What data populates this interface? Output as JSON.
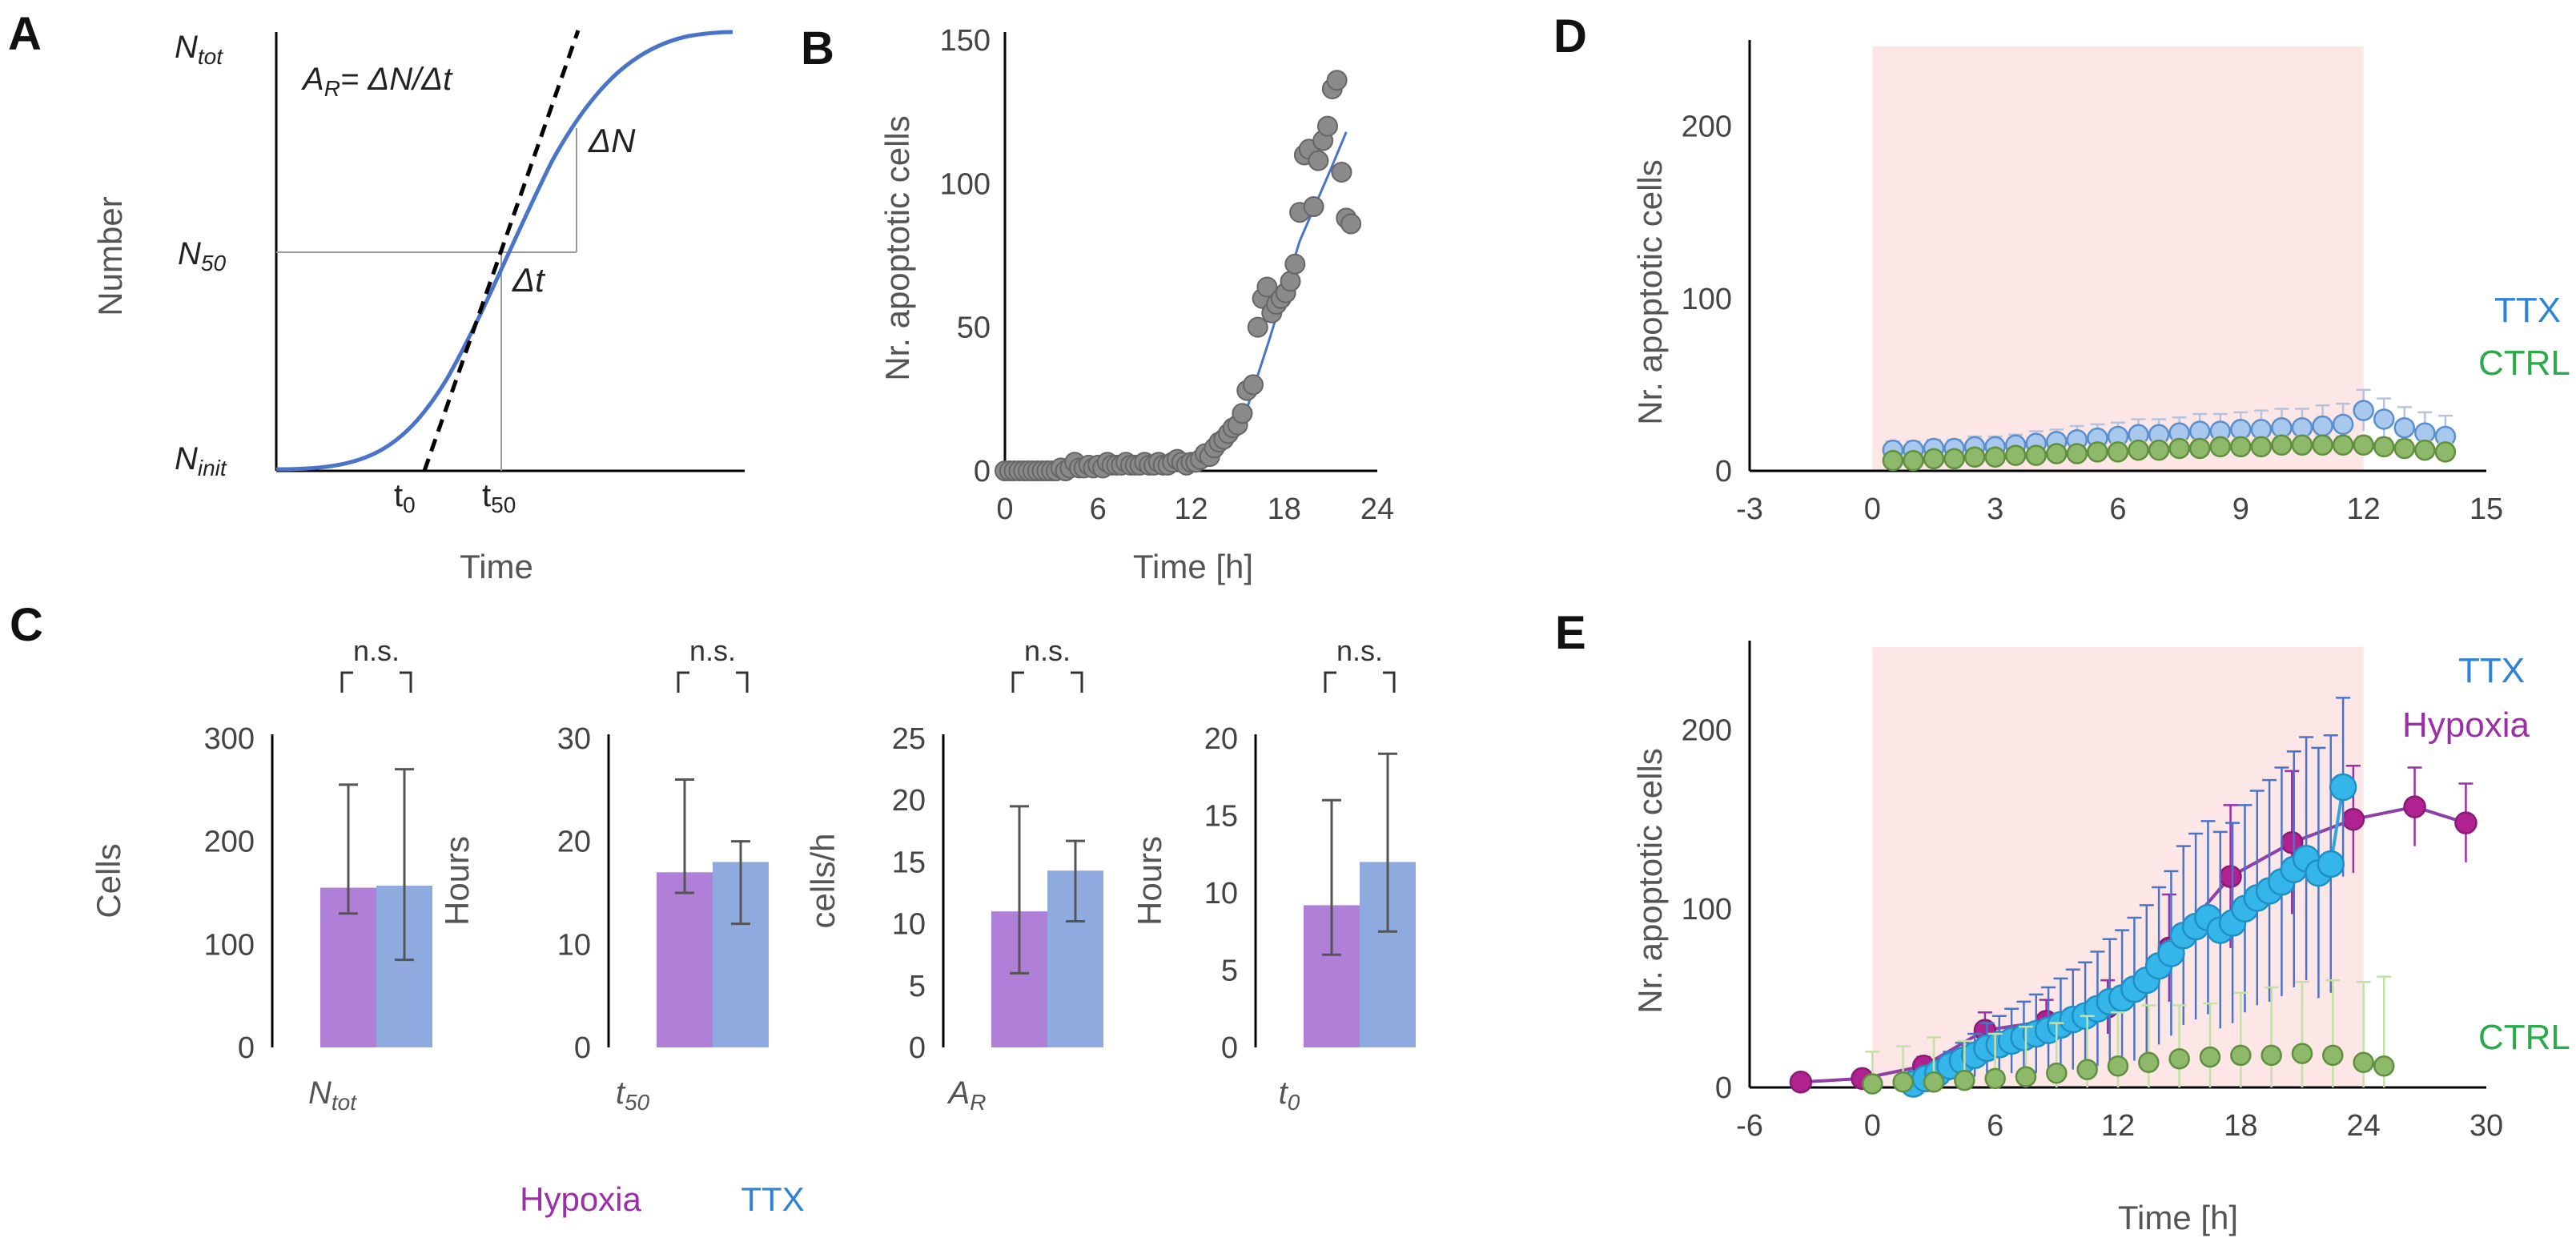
{
  "colors": {
    "hypoxia": "#b07fd8",
    "ttx": "#8eaadf",
    "ttx_dark": "#2f83d6",
    "hypoxia_dark": "#9b2fa8",
    "ctrl": "#2aaa4a",
    "ctrl_fill": "#8fb96a",
    "shade": "#fde6e6",
    "sigmoid": "#4a74c9",
    "gray_point": "#8a8a8a"
  },
  "chart_data": [
    {
      "panel": "A",
      "type": "line",
      "title": "",
      "xlabel": "Time",
      "ylabel": "Number",
      "y_levels": [
        "N_tot",
        "N_50",
        "N_init"
      ],
      "x_marks": [
        "t0",
        "t50"
      ],
      "annotations": [
        "A_R= ΔN/Δt",
        "ΔN",
        "Δt"
      ],
      "series": [
        {
          "name": "sigmoid",
          "shape": "logistic"
        }
      ]
    },
    {
      "panel": "B",
      "type": "scatter",
      "xlabel": "Time [h]",
      "ylabel": "Nr. apoptotic cells",
      "xlim": [
        0,
        24
      ],
      "ylim": [
        0,
        150
      ],
      "xticks": [
        0,
        6,
        12,
        18,
        24
      ],
      "yticks": [
        0,
        50,
        100,
        150
      ],
      "points": [
        [
          0,
          0
        ],
        [
          0.3,
          0
        ],
        [
          0.6,
          0
        ],
        [
          0.9,
          0
        ],
        [
          1.2,
          0
        ],
        [
          1.5,
          0
        ],
        [
          1.8,
          0
        ],
        [
          2.1,
          0
        ],
        [
          2.4,
          0
        ],
        [
          2.7,
          0
        ],
        [
          3,
          0
        ],
        [
          3.3,
          0
        ],
        [
          3.6,
          1
        ],
        [
          3.9,
          0
        ],
        [
          4.2,
          1
        ],
        [
          4.5,
          3
        ],
        [
          4.8,
          1
        ],
        [
          5.1,
          1
        ],
        [
          5.4,
          2
        ],
        [
          5.7,
          1
        ],
        [
          6,
          2
        ],
        [
          6.3,
          1
        ],
        [
          6.6,
          3
        ],
        [
          6.9,
          2
        ],
        [
          7.2,
          2
        ],
        [
          7.5,
          2
        ],
        [
          7.8,
          3
        ],
        [
          8.1,
          2
        ],
        [
          8.4,
          2
        ],
        [
          8.7,
          2
        ],
        [
          9,
          3
        ],
        [
          9.3,
          2
        ],
        [
          9.6,
          2
        ],
        [
          9.9,
          3
        ],
        [
          10.2,
          2
        ],
        [
          10.5,
          2
        ],
        [
          10.8,
          3
        ],
        [
          11.1,
          4
        ],
        [
          11.4,
          3
        ],
        [
          11.7,
          2
        ],
        [
          12,
          3
        ],
        [
          12.3,
          3
        ],
        [
          12.6,
          4
        ],
        [
          12.9,
          6
        ],
        [
          13.2,
          5
        ],
        [
          13.5,
          8
        ],
        [
          13.8,
          10
        ],
        [
          14.1,
          11
        ],
        [
          14.4,
          13
        ],
        [
          14.7,
          15
        ],
        [
          15,
          16
        ],
        [
          15.3,
          20
        ],
        [
          15.6,
          28
        ],
        [
          16,
          30
        ],
        [
          16.3,
          50
        ],
        [
          16.6,
          60
        ],
        [
          16.9,
          64
        ],
        [
          17.2,
          55
        ],
        [
          17.5,
          58
        ],
        [
          17.8,
          60
        ],
        [
          18.1,
          62
        ],
        [
          18.4,
          66
        ],
        [
          18.7,
          72
        ],
        [
          19,
          90
        ],
        [
          19.3,
          110
        ],
        [
          19.6,
          112
        ],
        [
          19.9,
          92
        ],
        [
          20.2,
          108
        ],
        [
          20.5,
          115
        ],
        [
          20.8,
          120
        ],
        [
          21.1,
          133
        ],
        [
          21.4,
          136
        ],
        [
          21.7,
          104
        ],
        [
          22,
          88
        ],
        [
          22.3,
          86
        ]
      ],
      "fit": [
        [
          0,
          0
        ],
        [
          12,
          2
        ],
        [
          14,
          8
        ],
        [
          15.5,
          20
        ],
        [
          17,
          45
        ],
        [
          19,
          80
        ],
        [
          21,
          105
        ],
        [
          22,
          118
        ]
      ]
    },
    {
      "panel": "C",
      "type": "bar",
      "legend": [
        "Hypoxia",
        "TTX"
      ],
      "subplots": [
        {
          "category": "N_tot",
          "ylabel": "Cells",
          "ylim": [
            0,
            300
          ],
          "yticks": [
            0,
            100,
            200,
            300
          ],
          "values": [
            155,
            157
          ],
          "err_low": [
            130,
            85
          ],
          "err_high": [
            255,
            270
          ],
          "sig": "n.s."
        },
        {
          "category": "t_50",
          "ylabel": "Hours",
          "ylim": [
            0,
            30
          ],
          "yticks": [
            0,
            10,
            20,
            30
          ],
          "values": [
            17,
            18
          ],
          "err_low": [
            15,
            12
          ],
          "err_high": [
            26,
            20
          ],
          "sig": "n.s."
        },
        {
          "category": "A_R",
          "ylabel": "cells/h",
          "ylim": [
            0,
            25
          ],
          "yticks": [
            0,
            5,
            10,
            15,
            20,
            25
          ],
          "values": [
            11,
            14.3
          ],
          "err_low": [
            6,
            10.2
          ],
          "err_high": [
            19.5,
            16.7
          ],
          "sig": "n.s."
        },
        {
          "category": "t_0",
          "ylabel": "Hours",
          "ylim": [
            0,
            20
          ],
          "yticks": [
            0,
            5,
            10,
            15,
            20
          ],
          "values": [
            9.2,
            12
          ],
          "err_low": [
            6,
            7.5
          ],
          "err_high": [
            16,
            19
          ],
          "sig": "n.s."
        }
      ]
    },
    {
      "panel": "D",
      "type": "line",
      "xlabel": "",
      "ylabel": "Nr. apoptotic cells",
      "xlim": [
        -3,
        15
      ],
      "ylim": [
        0,
        250
      ],
      "xticks": [
        -3,
        0,
        3,
        6,
        9,
        12,
        15
      ],
      "yticks": [
        0,
        100,
        200
      ],
      "shade_x": [
        0,
        12
      ],
      "series": [
        {
          "name": "TTX",
          "x": [
            0.5,
            1,
            1.5,
            2,
            2.5,
            3,
            3.5,
            4,
            4.5,
            5,
            5.5,
            6,
            6.5,
            7,
            7.5,
            8,
            8.5,
            9,
            9.5,
            10,
            10.5,
            11,
            11.5,
            12,
            12.5,
            13,
            13.5,
            14
          ],
          "y": [
            12,
            12,
            13,
            13,
            14,
            14,
            15,
            16,
            17,
            18,
            19,
            20,
            21,
            21,
            22,
            23,
            23,
            24,
            24,
            25,
            25,
            26,
            27,
            35,
            30,
            25,
            22,
            20
          ],
          "err": [
            5,
            5,
            5,
            5,
            6,
            6,
            6,
            7,
            7,
            8,
            8,
            8,
            9,
            9,
            9,
            10,
            10,
            10,
            11,
            11,
            11,
            12,
            12,
            12,
            12,
            12,
            12,
            12
          ]
        },
        {
          "name": "CTRL",
          "x": [
            0.5,
            1,
            1.5,
            2,
            2.5,
            3,
            3.5,
            4,
            4.5,
            5,
            5.5,
            6,
            6.5,
            7,
            7.5,
            8,
            8.5,
            9,
            9.5,
            10,
            10.5,
            11,
            11.5,
            12,
            12.5,
            13,
            13.5,
            14
          ],
          "y": [
            6,
            6,
            7,
            7,
            8,
            8,
            9,
            9,
            10,
            10,
            11,
            11,
            12,
            12,
            13,
            13,
            14,
            14,
            14,
            15,
            15,
            15,
            15,
            15,
            14,
            13,
            12,
            11
          ],
          "err": [
            3,
            3,
            3,
            3,
            3,
            4,
            4,
            4,
            4,
            4,
            4,
            5,
            5,
            5,
            5,
            5,
            5,
            5,
            5,
            5,
            5,
            5,
            5,
            5,
            5,
            5,
            5,
            5
          ]
        }
      ]
    },
    {
      "panel": "E",
      "type": "line",
      "xlabel": "Time [h]",
      "ylabel": "Nr. apoptotic cells",
      "xlim": [
        -6,
        30
      ],
      "ylim": [
        0,
        250
      ],
      "xticks": [
        -6,
        0,
        6,
        12,
        18,
        24,
        30
      ],
      "yticks": [
        0,
        100,
        200
      ],
      "shade_x": [
        0,
        24
      ],
      "series": [
        {
          "name": "Hypoxia",
          "x": [
            -3.5,
            -0.5,
            2.5,
            5.5,
            8.5,
            11.5,
            14.5,
            17.5,
            20.5,
            23.5,
            26.5,
            29
          ],
          "y": [
            3,
            5,
            12,
            32,
            37,
            45,
            78,
            118,
            137,
            150,
            157,
            148
          ],
          "err": [
            2,
            3,
            5,
            10,
            12,
            15,
            30,
            40,
            40,
            30,
            22,
            22
          ]
        },
        {
          "name": "TTX",
          "x": [
            2,
            2.6,
            3.2,
            3.8,
            4.4,
            5,
            5.6,
            6.2,
            6.8,
            7.4,
            8,
            8.6,
            9.2,
            9.8,
            10.4,
            11,
            11.6,
            12.2,
            12.8,
            13.4,
            14,
            14.6,
            15.2,
            15.8,
            16.4,
            17,
            17.6,
            18.2,
            18.8,
            19.4,
            20,
            20.6,
            21.2,
            21.8,
            22.4,
            23
          ],
          "y": [
            2,
            5,
            8,
            12,
            15,
            18,
            22,
            24,
            26,
            28,
            30,
            32,
            35,
            38,
            40,
            44,
            48,
            50,
            55,
            60,
            68,
            75,
            85,
            90,
            95,
            88,
            92,
            100,
            106,
            110,
            115,
            122,
            128,
            120,
            125,
            168
          ],
          "err": [
            3,
            5,
            6,
            8,
            10,
            12,
            14,
            16,
            18,
            20,
            22,
            24,
            26,
            28,
            30,
            32,
            35,
            38,
            40,
            42,
            44,
            46,
            50,
            52,
            54,
            55,
            56,
            58,
            60,
            62,
            64,
            66,
            68,
            70,
            72,
            50
          ]
        },
        {
          "name": "CTRL",
          "x": [
            0,
            1.5,
            3,
            4.5,
            6,
            7.5,
            9,
            10.5,
            12,
            13.5,
            15,
            16.5,
            18,
            19.5,
            21,
            22.5,
            24,
            25
          ],
          "y": [
            2,
            3,
            3,
            4,
            5,
            6,
            8,
            10,
            12,
            14,
            16,
            17,
            18,
            18,
            19,
            18,
            14,
            12
          ],
          "err": [
            18,
            20,
            25,
            22,
            25,
            28,
            28,
            30,
            30,
            32,
            30,
            30,
            35,
            38,
            40,
            42,
            45,
            50
          ]
        }
      ]
    }
  ],
  "text": {
    "A_label": "A",
    "B_label": "B",
    "C_label": "C",
    "D_label": "D",
    "E_label": "E",
    "A_ntot": "N",
    "A_ntot_sub": "tot",
    "A_n50": "N",
    "A_n50_sub": "50",
    "A_ninit": "N",
    "A_ninit_sub": "init",
    "A_eq": "A",
    "A_eq_sub": "R",
    "A_eq_rest": "= ΔN/Δt",
    "A_dn": "ΔN",
    "A_dt": "Δt",
    "A_t0": "t",
    "A_t0_sub": "0",
    "A_t50": "t",
    "A_t50_sub": "50",
    "A_ylabel": "Number",
    "A_xlabel": "Time",
    "B_xlabel": "Time [h]",
    "B_ylabel": "Nr. apoptotic cells",
    "C_ylab1": "Cells",
    "C_ylab2": "Hours",
    "C_ylab3": "cells/h",
    "C_ylab4": "Hours",
    "C_cat1": "N",
    "C_cat1_sub": "tot",
    "C_cat2": "t",
    "C_cat2_sub": "50",
    "C_cat3": "A",
    "C_cat3_sub": "R",
    "C_cat4": "t",
    "C_cat4_sub": "0",
    "C_ns": "n.s.",
    "legend_hypoxia": "Hypoxia",
    "legend_ttx": "TTX",
    "D_ylabel": "Nr. apoptotic cells",
    "D_ttx": "TTX",
    "D_ctrl": "CTRL",
    "E_ylabel": "Nr. apoptotic cells",
    "E_xlabel": "Time [h]",
    "E_ttx": "TTX",
    "E_hypoxia": "Hypoxia",
    "E_ctrl": "CTRL"
  }
}
